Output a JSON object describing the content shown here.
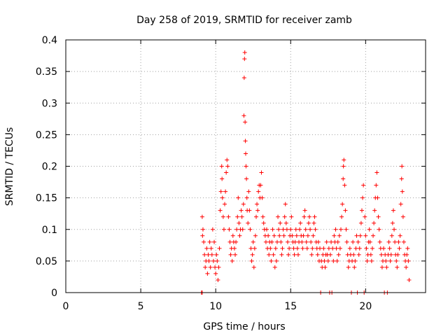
{
  "chart_data": {
    "type": "scatter",
    "title": "Day 258 of 2019, SRMTID for receiver zamb",
    "xlabel": "GPS time / hours",
    "ylabel": "SRMTID / TECUs",
    "xlim": [
      0,
      24
    ],
    "ylim": [
      0,
      0.4
    ],
    "grid": true,
    "marker": "+",
    "marker_color": "#ff0000",
    "x_ticks": [
      {
        "value": 0,
        "label": "0"
      },
      {
        "value": 5,
        "label": "5"
      },
      {
        "value": 10,
        "label": "10"
      },
      {
        "value": 15,
        "label": "15"
      },
      {
        "value": 20,
        "label": "20"
      }
    ],
    "y_ticks": [
      {
        "value": 0,
        "label": "0"
      },
      {
        "value": 0.05,
        "label": "0.05"
      },
      {
        "value": 0.1,
        "label": "0.1"
      },
      {
        "value": 0.15,
        "label": "0.15"
      },
      {
        "value": 0.2,
        "label": "0.2"
      },
      {
        "value": 0.25,
        "label": "0.25"
      },
      {
        "value": 0.3,
        "label": "0.3"
      },
      {
        "value": 0.35,
        "label": "0.35"
      },
      {
        "value": 0.4,
        "label": "0.4"
      }
    ],
    "series": [
      {
        "name": "SRMTID",
        "points": [
          [
            9.05,
            0.0
          ],
          [
            9.1,
            0.0
          ],
          [
            9.1,
            0.12
          ],
          [
            9.12,
            0.09
          ],
          [
            9.15,
            0.1
          ],
          [
            9.2,
            0.08
          ],
          [
            9.25,
            0.06
          ],
          [
            9.3,
            0.04
          ],
          [
            9.35,
            0.05
          ],
          [
            9.4,
            0.07
          ],
          [
            9.45,
            0.03
          ],
          [
            9.5,
            0.06
          ],
          [
            9.55,
            0.05
          ],
          [
            9.6,
            0.08
          ],
          [
            9.65,
            0.04
          ],
          [
            9.7,
            0.07
          ],
          [
            9.75,
            0.06
          ],
          [
            9.8,
            0.1
          ],
          [
            9.85,
            0.05
          ],
          [
            9.9,
            0.08
          ],
          [
            9.95,
            0.04
          ],
          [
            10.0,
            0.03
          ],
          [
            10.05,
            0.06
          ],
          [
            10.1,
            0.05
          ],
          [
            10.15,
            0.02
          ],
          [
            10.2,
            0.04
          ],
          [
            10.25,
            0.07
          ],
          [
            10.3,
            0.13
          ],
          [
            10.35,
            0.16
          ],
          [
            10.4,
            0.2
          ],
          [
            10.42,
            0.18
          ],
          [
            10.45,
            0.15
          ],
          [
            10.5,
            0.12
          ],
          [
            10.55,
            0.1
          ],
          [
            10.6,
            0.14
          ],
          [
            10.65,
            0.16
          ],
          [
            10.7,
            0.19
          ],
          [
            10.75,
            0.21
          ],
          [
            10.8,
            0.2
          ],
          [
            10.85,
            0.12
          ],
          [
            10.9,
            0.1
          ],
          [
            10.95,
            0.08
          ],
          [
            11.0,
            0.06
          ],
          [
            11.05,
            0.07
          ],
          [
            11.1,
            0.05
          ],
          [
            11.15,
            0.09
          ],
          [
            11.2,
            0.08
          ],
          [
            11.25,
            0.07
          ],
          [
            11.3,
            0.06
          ],
          [
            11.35,
            0.08
          ],
          [
            11.4,
            0.1
          ],
          [
            11.45,
            0.12
          ],
          [
            11.5,
            0.15
          ],
          [
            11.55,
            0.11
          ],
          [
            11.6,
            0.09
          ],
          [
            11.65,
            0.1
          ],
          [
            11.7,
            0.13
          ],
          [
            11.75,
            0.12
          ],
          [
            11.8,
            0.1
          ],
          [
            11.85,
            0.14
          ],
          [
            11.88,
            0.28
          ],
          [
            11.9,
            0.34
          ],
          [
            11.92,
            0.37
          ],
          [
            11.94,
            0.38
          ],
          [
            11.96,
            0.27
          ],
          [
            11.98,
            0.24
          ],
          [
            12.0,
            0.22
          ],
          [
            12.02,
            0.2
          ],
          [
            12.05,
            0.18
          ],
          [
            12.08,
            0.15
          ],
          [
            12.1,
            0.13
          ],
          [
            12.15,
            0.11
          ],
          [
            12.2,
            0.16
          ],
          [
            12.25,
            0.13
          ],
          [
            12.3,
            0.1
          ],
          [
            12.35,
            0.07
          ],
          [
            12.4,
            0.05
          ],
          [
            12.45,
            0.06
          ],
          [
            12.5,
            0.08
          ],
          [
            12.55,
            0.04
          ],
          [
            12.6,
            0.07
          ],
          [
            12.65,
            0.09
          ],
          [
            12.7,
            0.12
          ],
          [
            12.75,
            0.14
          ],
          [
            12.8,
            0.13
          ],
          [
            12.85,
            0.16
          ],
          [
            12.9,
            0.17
          ],
          [
            12.95,
            0.15
          ],
          [
            13.0,
            0.17
          ],
          [
            13.05,
            0.19
          ],
          [
            13.1,
            0.15
          ],
          [
            13.15,
            0.12
          ],
          [
            13.2,
            0.11
          ],
          [
            13.25,
            0.1
          ],
          [
            13.3,
            0.09
          ],
          [
            13.35,
            0.08
          ],
          [
            13.4,
            0.1
          ],
          [
            13.45,
            0.07
          ],
          [
            13.5,
            0.09
          ],
          [
            13.55,
            0.06
          ],
          [
            13.6,
            0.08
          ],
          [
            13.65,
            0.07
          ],
          [
            13.7,
            0.05
          ],
          [
            13.75,
            0.08
          ],
          [
            13.8,
            0.1
          ],
          [
            13.85,
            0.06
          ],
          [
            13.9,
            0.09
          ],
          [
            13.95,
            0.04
          ],
          [
            14.0,
            0.07
          ],
          [
            14.05,
            0.05
          ],
          [
            14.1,
            0.08
          ],
          [
            14.15,
            0.12
          ],
          [
            14.2,
            0.1
          ],
          [
            14.25,
            0.09
          ],
          [
            14.3,
            0.11
          ],
          [
            14.35,
            0.08
          ],
          [
            14.4,
            0.06
          ],
          [
            14.45,
            0.07
          ],
          [
            14.5,
            0.1
          ],
          [
            14.55,
            0.09
          ],
          [
            14.6,
            0.12
          ],
          [
            14.65,
            0.14
          ],
          [
            14.7,
            0.11
          ],
          [
            14.75,
            0.1
          ],
          [
            14.8,
            0.08
          ],
          [
            14.85,
            0.06
          ],
          [
            14.9,
            0.07
          ],
          [
            14.95,
            0.09
          ],
          [
            15.0,
            0.1
          ],
          [
            15.05,
            0.12
          ],
          [
            15.1,
            0.09
          ],
          [
            15.15,
            0.08
          ],
          [
            15.2,
            0.07
          ],
          [
            15.25,
            0.06
          ],
          [
            15.3,
            0.08
          ],
          [
            15.35,
            0.1
          ],
          [
            15.4,
            0.09
          ],
          [
            15.45,
            0.07
          ],
          [
            15.5,
            0.06
          ],
          [
            15.55,
            0.08
          ],
          [
            15.6,
            0.1
          ],
          [
            15.65,
            0.11
          ],
          [
            15.7,
            0.09
          ],
          [
            15.75,
            0.08
          ],
          [
            15.8,
            0.07
          ],
          [
            15.85,
            0.09
          ],
          [
            15.9,
            0.12
          ],
          [
            15.95,
            0.13
          ],
          [
            16.0,
            0.1
          ],
          [
            16.05,
            0.08
          ],
          [
            16.1,
            0.07
          ],
          [
            16.15,
            0.09
          ],
          [
            16.2,
            0.11
          ],
          [
            16.25,
            0.12
          ],
          [
            16.3,
            0.1
          ],
          [
            16.35,
            0.08
          ],
          [
            16.4,
            0.06
          ],
          [
            16.45,
            0.07
          ],
          [
            16.5,
            0.09
          ],
          [
            16.55,
            0.11
          ],
          [
            16.6,
            0.12
          ],
          [
            16.65,
            0.1
          ],
          [
            16.7,
            0.08
          ],
          [
            16.75,
            0.07
          ],
          [
            16.8,
            0.06
          ],
          [
            16.85,
            0.08
          ],
          [
            16.9,
            0.05
          ],
          [
            16.95,
            0.07
          ],
          [
            17.0,
            0.0
          ],
          [
            17.05,
            0.05
          ],
          [
            17.1,
            0.04
          ],
          [
            17.15,
            0.06
          ],
          [
            17.2,
            0.07
          ],
          [
            17.25,
            0.05
          ],
          [
            17.3,
            0.04
          ],
          [
            17.35,
            0.06
          ],
          [
            17.4,
            0.08
          ],
          [
            17.45,
            0.06
          ],
          [
            17.5,
            0.05
          ],
          [
            17.55,
            0.07
          ],
          [
            17.6,
            0.0
          ],
          [
            17.65,
            0.06
          ],
          [
            17.7,
            0.08
          ],
          [
            17.75,
            0.0
          ],
          [
            17.8,
            0.07
          ],
          [
            17.85,
            0.05
          ],
          [
            17.9,
            0.09
          ],
          [
            17.95,
            0.08
          ],
          [
            18.0,
            0.1
          ],
          [
            18.05,
            0.07
          ],
          [
            18.1,
            0.05
          ],
          [
            18.15,
            0.08
          ],
          [
            18.2,
            0.06
          ],
          [
            18.25,
            0.09
          ],
          [
            18.3,
            0.07
          ],
          [
            18.35,
            0.1
          ],
          [
            18.4,
            0.12
          ],
          [
            18.45,
            0.14
          ],
          [
            18.5,
            0.18
          ],
          [
            18.52,
            0.2
          ],
          [
            18.55,
            0.21
          ],
          [
            18.6,
            0.17
          ],
          [
            18.65,
            0.13
          ],
          [
            18.7,
            0.1
          ],
          [
            18.75,
            0.08
          ],
          [
            18.8,
            0.06
          ],
          [
            18.85,
            0.04
          ],
          [
            18.9,
            0.05
          ],
          [
            18.95,
            0.07
          ],
          [
            19.0,
            0.06
          ],
          [
            19.05,
            0.0
          ],
          [
            19.1,
            0.05
          ],
          [
            19.15,
            0.08
          ],
          [
            19.2,
            0.06
          ],
          [
            19.25,
            0.04
          ],
          [
            19.3,
            0.05
          ],
          [
            19.35,
            0.07
          ],
          [
            19.4,
            0.09
          ],
          [
            19.45,
            0.0
          ],
          [
            19.5,
            0.08
          ],
          [
            19.55,
            0.06
          ],
          [
            19.6,
            0.07
          ],
          [
            19.65,
            0.09
          ],
          [
            19.7,
            0.11
          ],
          [
            19.75,
            0.13
          ],
          [
            19.8,
            0.15
          ],
          [
            19.85,
            0.17
          ],
          [
            19.9,
            0.0
          ],
          [
            19.95,
            0.12
          ],
          [
            20.0,
            0.09
          ],
          [
            20.05,
            0.07
          ],
          [
            20.1,
            0.05
          ],
          [
            20.15,
            0.06
          ],
          [
            20.2,
            0.08
          ],
          [
            20.25,
            0.1
          ],
          [
            20.3,
            0.08
          ],
          [
            20.35,
            0.06
          ],
          [
            20.4,
            0.05
          ],
          [
            20.45,
            0.07
          ],
          [
            20.5,
            0.09
          ],
          [
            20.55,
            0.11
          ],
          [
            20.6,
            0.13
          ],
          [
            20.65,
            0.15
          ],
          [
            20.7,
            0.17
          ],
          [
            20.75,
            0.19
          ],
          [
            20.8,
            0.15
          ],
          [
            20.85,
            0.12
          ],
          [
            20.9,
            0.1
          ],
          [
            20.95,
            0.08
          ],
          [
            21.0,
            0.07
          ],
          [
            21.05,
            0.06
          ],
          [
            21.1,
            0.04
          ],
          [
            21.15,
            0.05
          ],
          [
            21.2,
            0.07
          ],
          [
            21.25,
            0.0
          ],
          [
            21.3,
            0.06
          ],
          [
            21.35,
            0.05
          ],
          [
            21.4,
            0.04
          ],
          [
            21.45,
            0.0
          ],
          [
            21.5,
            0.06
          ],
          [
            21.55,
            0.08
          ],
          [
            21.6,
            0.07
          ],
          [
            21.65,
            0.05
          ],
          [
            21.7,
            0.06
          ],
          [
            21.75,
            0.09
          ],
          [
            21.8,
            0.11
          ],
          [
            21.85,
            0.13
          ],
          [
            21.9,
            0.1
          ],
          [
            21.95,
            0.08
          ],
          [
            22.0,
            0.06
          ],
          [
            22.05,
            0.05
          ],
          [
            22.1,
            0.04
          ],
          [
            22.15,
            0.06
          ],
          [
            22.2,
            0.08
          ],
          [
            22.25,
            0.07
          ],
          [
            22.3,
            0.09
          ],
          [
            22.35,
            0.14
          ],
          [
            22.4,
            0.18
          ],
          [
            22.42,
            0.2
          ],
          [
            22.45,
            0.16
          ],
          [
            22.5,
            0.12
          ],
          [
            22.55,
            0.08
          ],
          [
            22.6,
            0.06
          ],
          [
            22.65,
            0.05
          ],
          [
            22.7,
            0.04
          ],
          [
            22.75,
            0.06
          ],
          [
            22.8,
            0.07
          ],
          [
            22.85,
            0.05
          ],
          [
            22.9,
            0.02
          ]
        ]
      }
    ]
  }
}
